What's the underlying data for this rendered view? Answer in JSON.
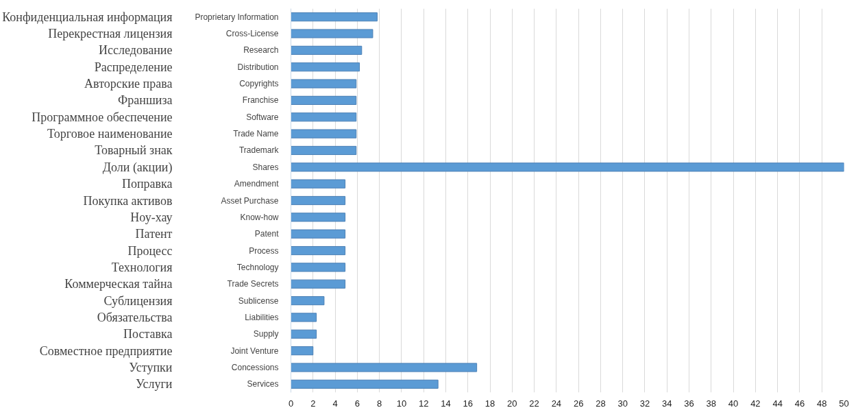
{
  "chart_data": {
    "type": "bar",
    "orientation": "horizontal",
    "categories": [
      "Proprietary Information",
      "Cross-License",
      "Research",
      "Distribution",
      "Copyrights",
      "Franchise",
      "Software",
      "Trade Name",
      "Trademark",
      "Shares",
      "Amendment",
      "Asset Purchase",
      "Know-how",
      "Patent",
      "Process",
      "Technology",
      "Trade Secrets",
      "Sublicense",
      "Liabilities",
      "Supply",
      "Joint Venture",
      "Concessions",
      "Services"
    ],
    "y2_categories": [
      "Конфиденциальная информация",
      "Перекрестная лицензия",
      "Исследование",
      "Распределение",
      "Авторские права",
      "Франшиза",
      "Программное обеспечение",
      "Торговое наименование",
      "Товарный знак",
      "Доли (акции)",
      "Поправка",
      "Покупка активов",
      "Ноу-хау",
      "Патент",
      "Процесс",
      "Технология",
      "Коммерческая тайна",
      "Сублицензия",
      "Обязательства",
      "Поставка",
      "Совместное предприятие",
      "Уступки",
      "Услуги"
    ],
    "values": [
      7.8,
      7.4,
      6.4,
      6.2,
      5.9,
      5.9,
      5.9,
      5.9,
      5.9,
      50,
      4.9,
      4.9,
      4.9,
      4.9,
      4.9,
      4.9,
      4.9,
      3.0,
      2.3,
      2.3,
      2.0,
      16.8,
      13.3
    ],
    "color": "#5b9bd5",
    "xlim": [
      0,
      50
    ],
    "xticks": [
      0,
      2,
      4,
      6,
      8,
      10,
      12,
      14,
      16,
      18,
      20,
      22,
      24,
      26,
      28,
      30,
      32,
      34,
      36,
      38,
      40,
      42,
      44,
      46,
      48,
      50
    ],
    "grid": "x"
  }
}
